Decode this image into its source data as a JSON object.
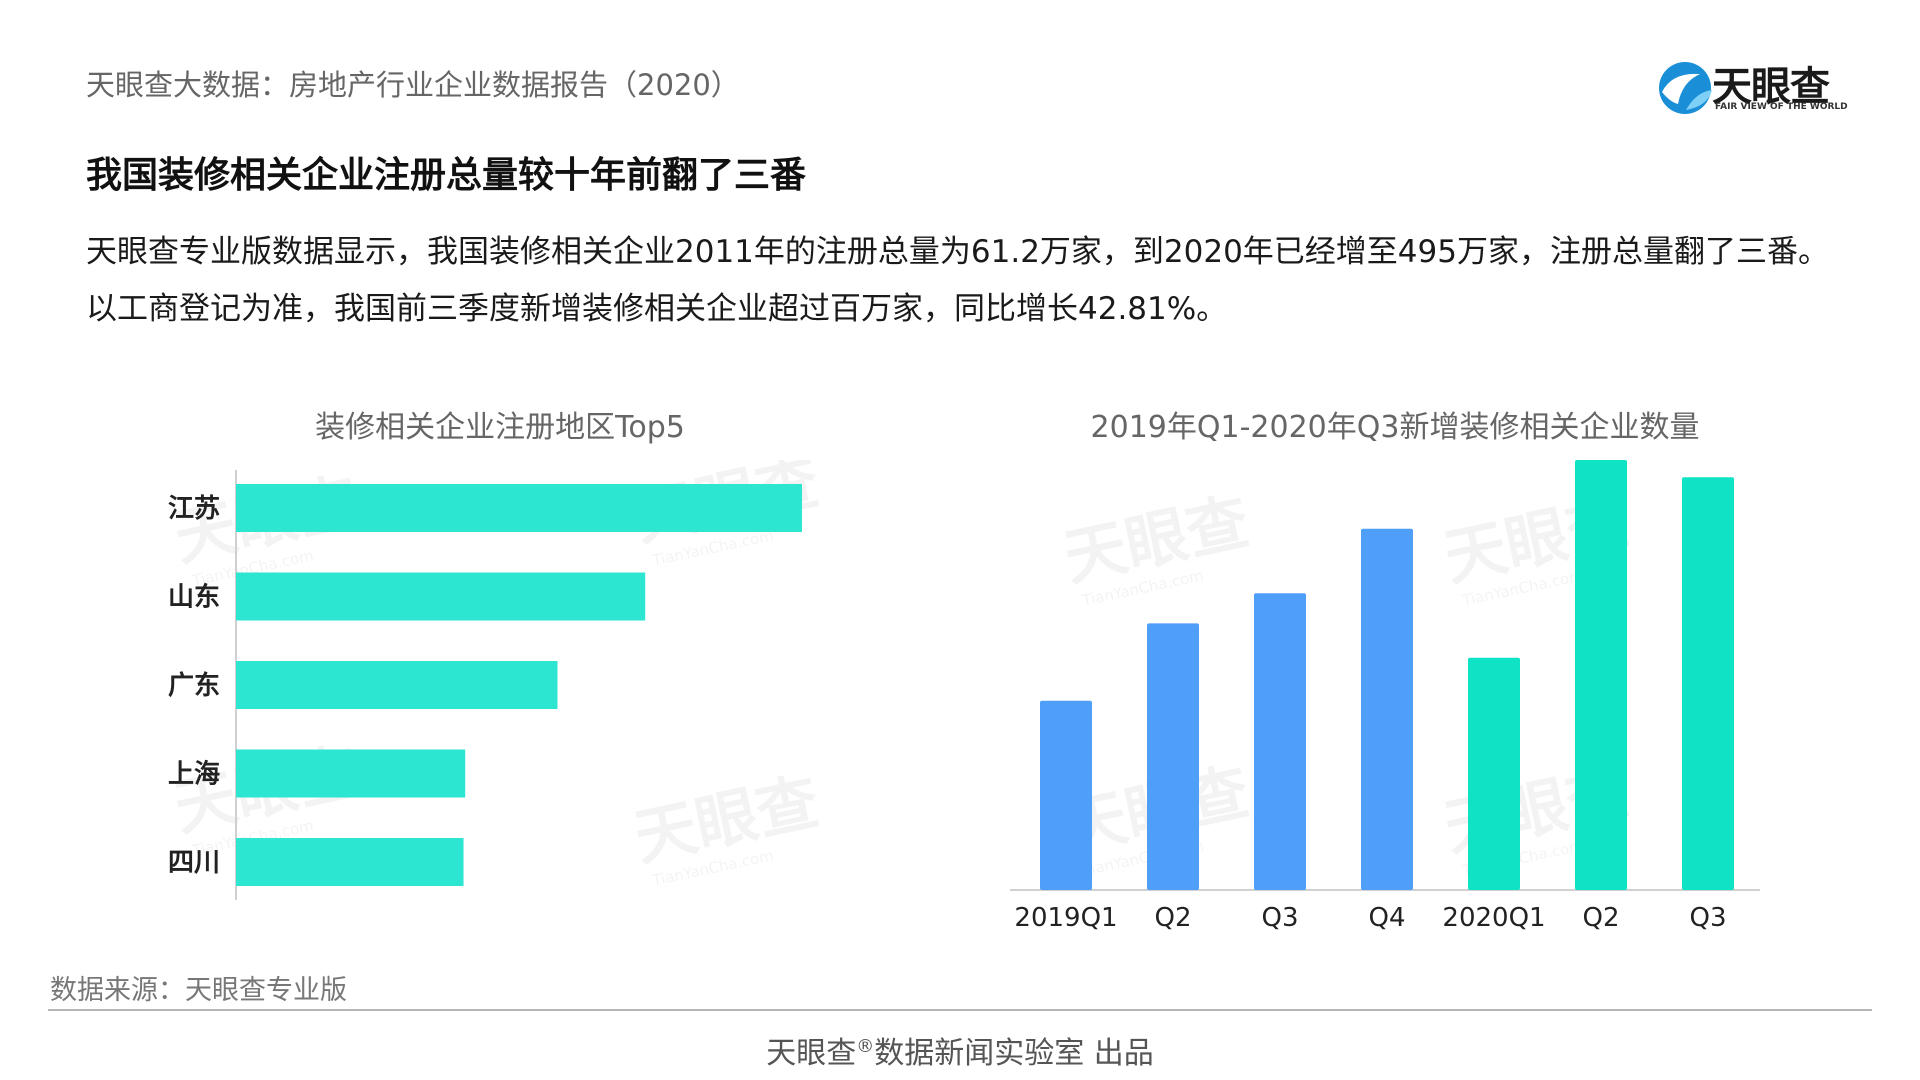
{
  "header": {
    "report_title": "天眼查大数据：房地产行业企业数据报告（2020）",
    "logo_text": "天眼查",
    "logo_tagline": "FAIR VIEW OF THE WORLD"
  },
  "headline": "我国装修相关企业注册总量较十年前翻了三番",
  "paragraph": "天眼查专业版数据显示，我国装修相关企业2011年的注册总量为61.2万家，到2020年已经增至495万家，注册总量翻了三番。以工商登记为准，我国前三季度新增装修相关企业超过百万家，同比增长42.81%。",
  "watermark": {
    "text": "天眼查",
    "sub": "TianYanCha.com"
  },
  "chart_data": [
    {
      "type": "bar",
      "orientation": "horizontal",
      "title": "装修相关企业注册地区Top5",
      "categories": [
        "江苏",
        "山东",
        "广东",
        "上海",
        "四川"
      ],
      "values": [
        100,
        72.3,
        56.8,
        40.5,
        40.2
      ],
      "xlim": [
        0,
        100
      ],
      "grid": false,
      "bar_color": "#2de6d2"
    },
    {
      "type": "bar",
      "orientation": "vertical",
      "title": "2019年Q1-2020年Q3新增装修相关企业数量",
      "categories": [
        "2019Q1",
        "Q2",
        "Q3",
        "Q4",
        "2020Q1",
        "Q2",
        "Q3"
      ],
      "values": [
        44,
        62,
        69,
        84,
        54,
        100,
        96
      ],
      "ylim": [
        0,
        100
      ],
      "grid": false,
      "bar_colors": [
        "#4f9ff8",
        "#4f9ff8",
        "#4f9ff8",
        "#4f9ff8",
        "#0ee3c6",
        "#0ee3c6",
        "#0ee3c6"
      ]
    }
  ],
  "source": "数据来源：天眼查专业版",
  "footer": {
    "brand": "天眼查",
    "mark": "®",
    "rest": "数据新闻实验室 出品"
  },
  "colors": {
    "blue_bar": "#4f9ff8",
    "teal_bar": "#0ee3c6",
    "h_bar": "#2de6d2",
    "logo_blue": "#1a8fd8"
  }
}
